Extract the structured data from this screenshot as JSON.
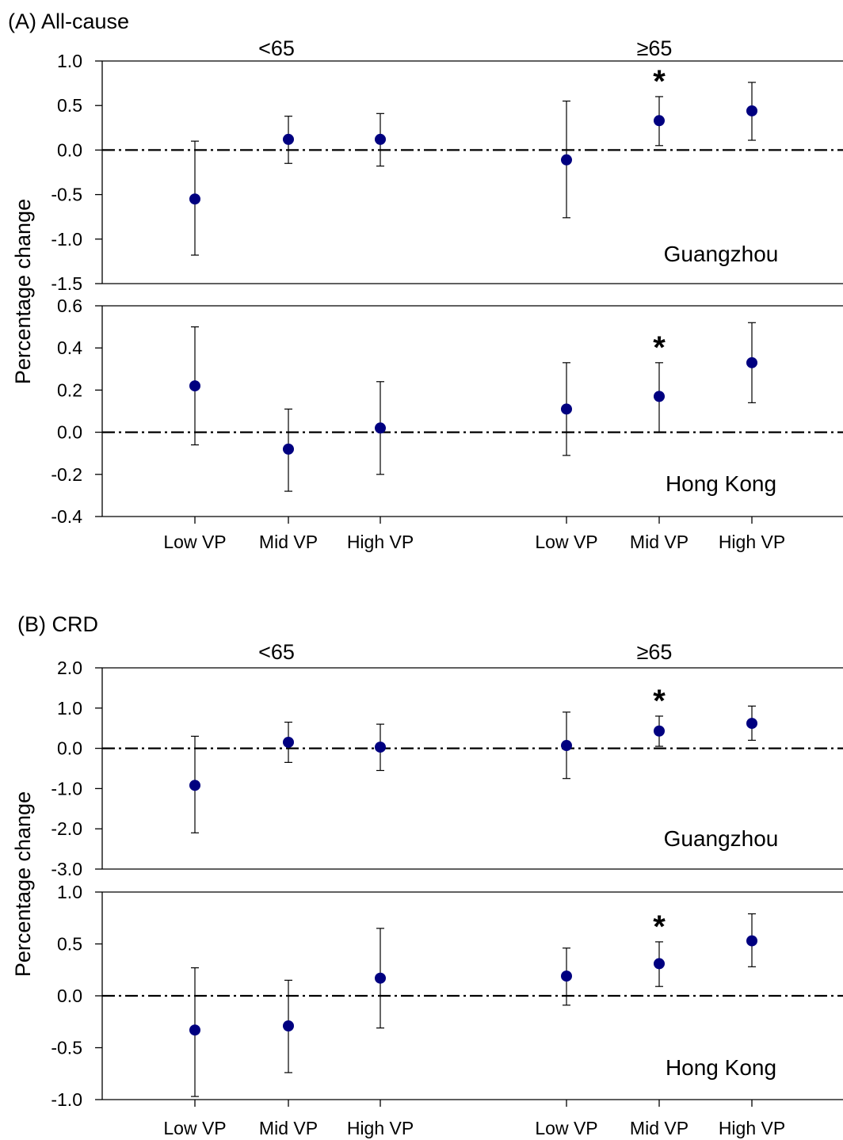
{
  "chart_data": [
    {
      "type": "scatter",
      "title": "(A) All-cause",
      "ylabel": "Percentage change",
      "groups": [
        "<65",
        "≥65"
      ],
      "categories": [
        "Low VP",
        "Mid VP",
        "High VP",
        "Low VP",
        "Mid VP",
        "High VP"
      ],
      "panels": [
        {
          "label": "Guangzhou",
          "ylim": [
            -1.5,
            1.0
          ],
          "yticks": [
            1.0,
            0.5,
            0.0,
            -0.5,
            -1.0,
            -1.5
          ],
          "ytick_labels": [
            "1.0",
            "0.5",
            "0.0",
            "-0.5",
            "-1.0",
            "-1.5"
          ],
          "values": [
            -0.55,
            0.12,
            0.12,
            -0.11,
            0.33,
            0.44
          ],
          "lower": [
            -1.18,
            -0.15,
            -0.18,
            -0.76,
            0.05,
            0.11
          ],
          "upper": [
            0.1,
            0.38,
            0.41,
            0.55,
            0.6,
            0.76
          ],
          "significant": [
            false,
            false,
            false,
            false,
            true,
            false
          ]
        },
        {
          "label": "Hong Kong",
          "ylim": [
            -0.4,
            0.6
          ],
          "yticks": [
            0.6,
            0.4,
            0.2,
            0.0,
            -0.2,
            -0.4
          ],
          "ytick_labels": [
            "0.6",
            "0.4",
            "0.2",
            "0.0",
            "-0.2",
            "-0.4"
          ],
          "values": [
            0.22,
            -0.08,
            0.02,
            0.11,
            0.17,
            0.33
          ],
          "lower": [
            -0.06,
            -0.28,
            -0.2,
            -0.11,
            0.0,
            0.14
          ],
          "upper": [
            0.5,
            0.11,
            0.24,
            0.33,
            0.33,
            0.52
          ],
          "significant": [
            false,
            false,
            false,
            false,
            true,
            false
          ]
        }
      ]
    },
    {
      "type": "scatter",
      "title": "(B) CRD",
      "ylabel": "Percentage change",
      "groups": [
        "<65",
        "≥65"
      ],
      "categories": [
        "Low VP",
        "Mid VP",
        "High VP",
        "Low VP",
        "Mid VP",
        "High VP"
      ],
      "panels": [
        {
          "label": "Guangzhou",
          "ylim": [
            -3.0,
            2.0
          ],
          "yticks": [
            2.0,
            1.0,
            0.0,
            -1.0,
            -2.0,
            -3.0
          ],
          "ytick_labels": [
            "2.0",
            "1.0",
            "0.0",
            "-1.0",
            "-2.0",
            "-3.0"
          ],
          "values": [
            -0.92,
            0.15,
            0.03,
            0.07,
            0.43,
            0.62
          ],
          "lower": [
            -2.1,
            -0.35,
            -0.55,
            -0.75,
            0.05,
            0.2
          ],
          "upper": [
            0.3,
            0.65,
            0.6,
            0.9,
            0.8,
            1.05
          ],
          "significant": [
            false,
            false,
            false,
            false,
            true,
            false
          ]
        },
        {
          "label": "Hong Kong",
          "ylim": [
            -1.0,
            1.0
          ],
          "yticks": [
            1.0,
            0.5,
            0.0,
            -0.5,
            -1.0
          ],
          "ytick_labels": [
            "1.0",
            "0.5",
            "0.0",
            "-0.5",
            "-1.0"
          ],
          "values": [
            -0.33,
            -0.29,
            0.17,
            0.19,
            0.31,
            0.53
          ],
          "lower": [
            -0.97,
            -0.74,
            -0.31,
            -0.09,
            0.09,
            0.28
          ],
          "upper": [
            0.27,
            0.15,
            0.65,
            0.46,
            0.52,
            0.79
          ],
          "significant": [
            false,
            false,
            false,
            false,
            true,
            false
          ]
        }
      ]
    }
  ],
  "annotations": {
    "significance_marker": "*"
  },
  "colors": {
    "marker": "#000080",
    "line": "#000000"
  }
}
